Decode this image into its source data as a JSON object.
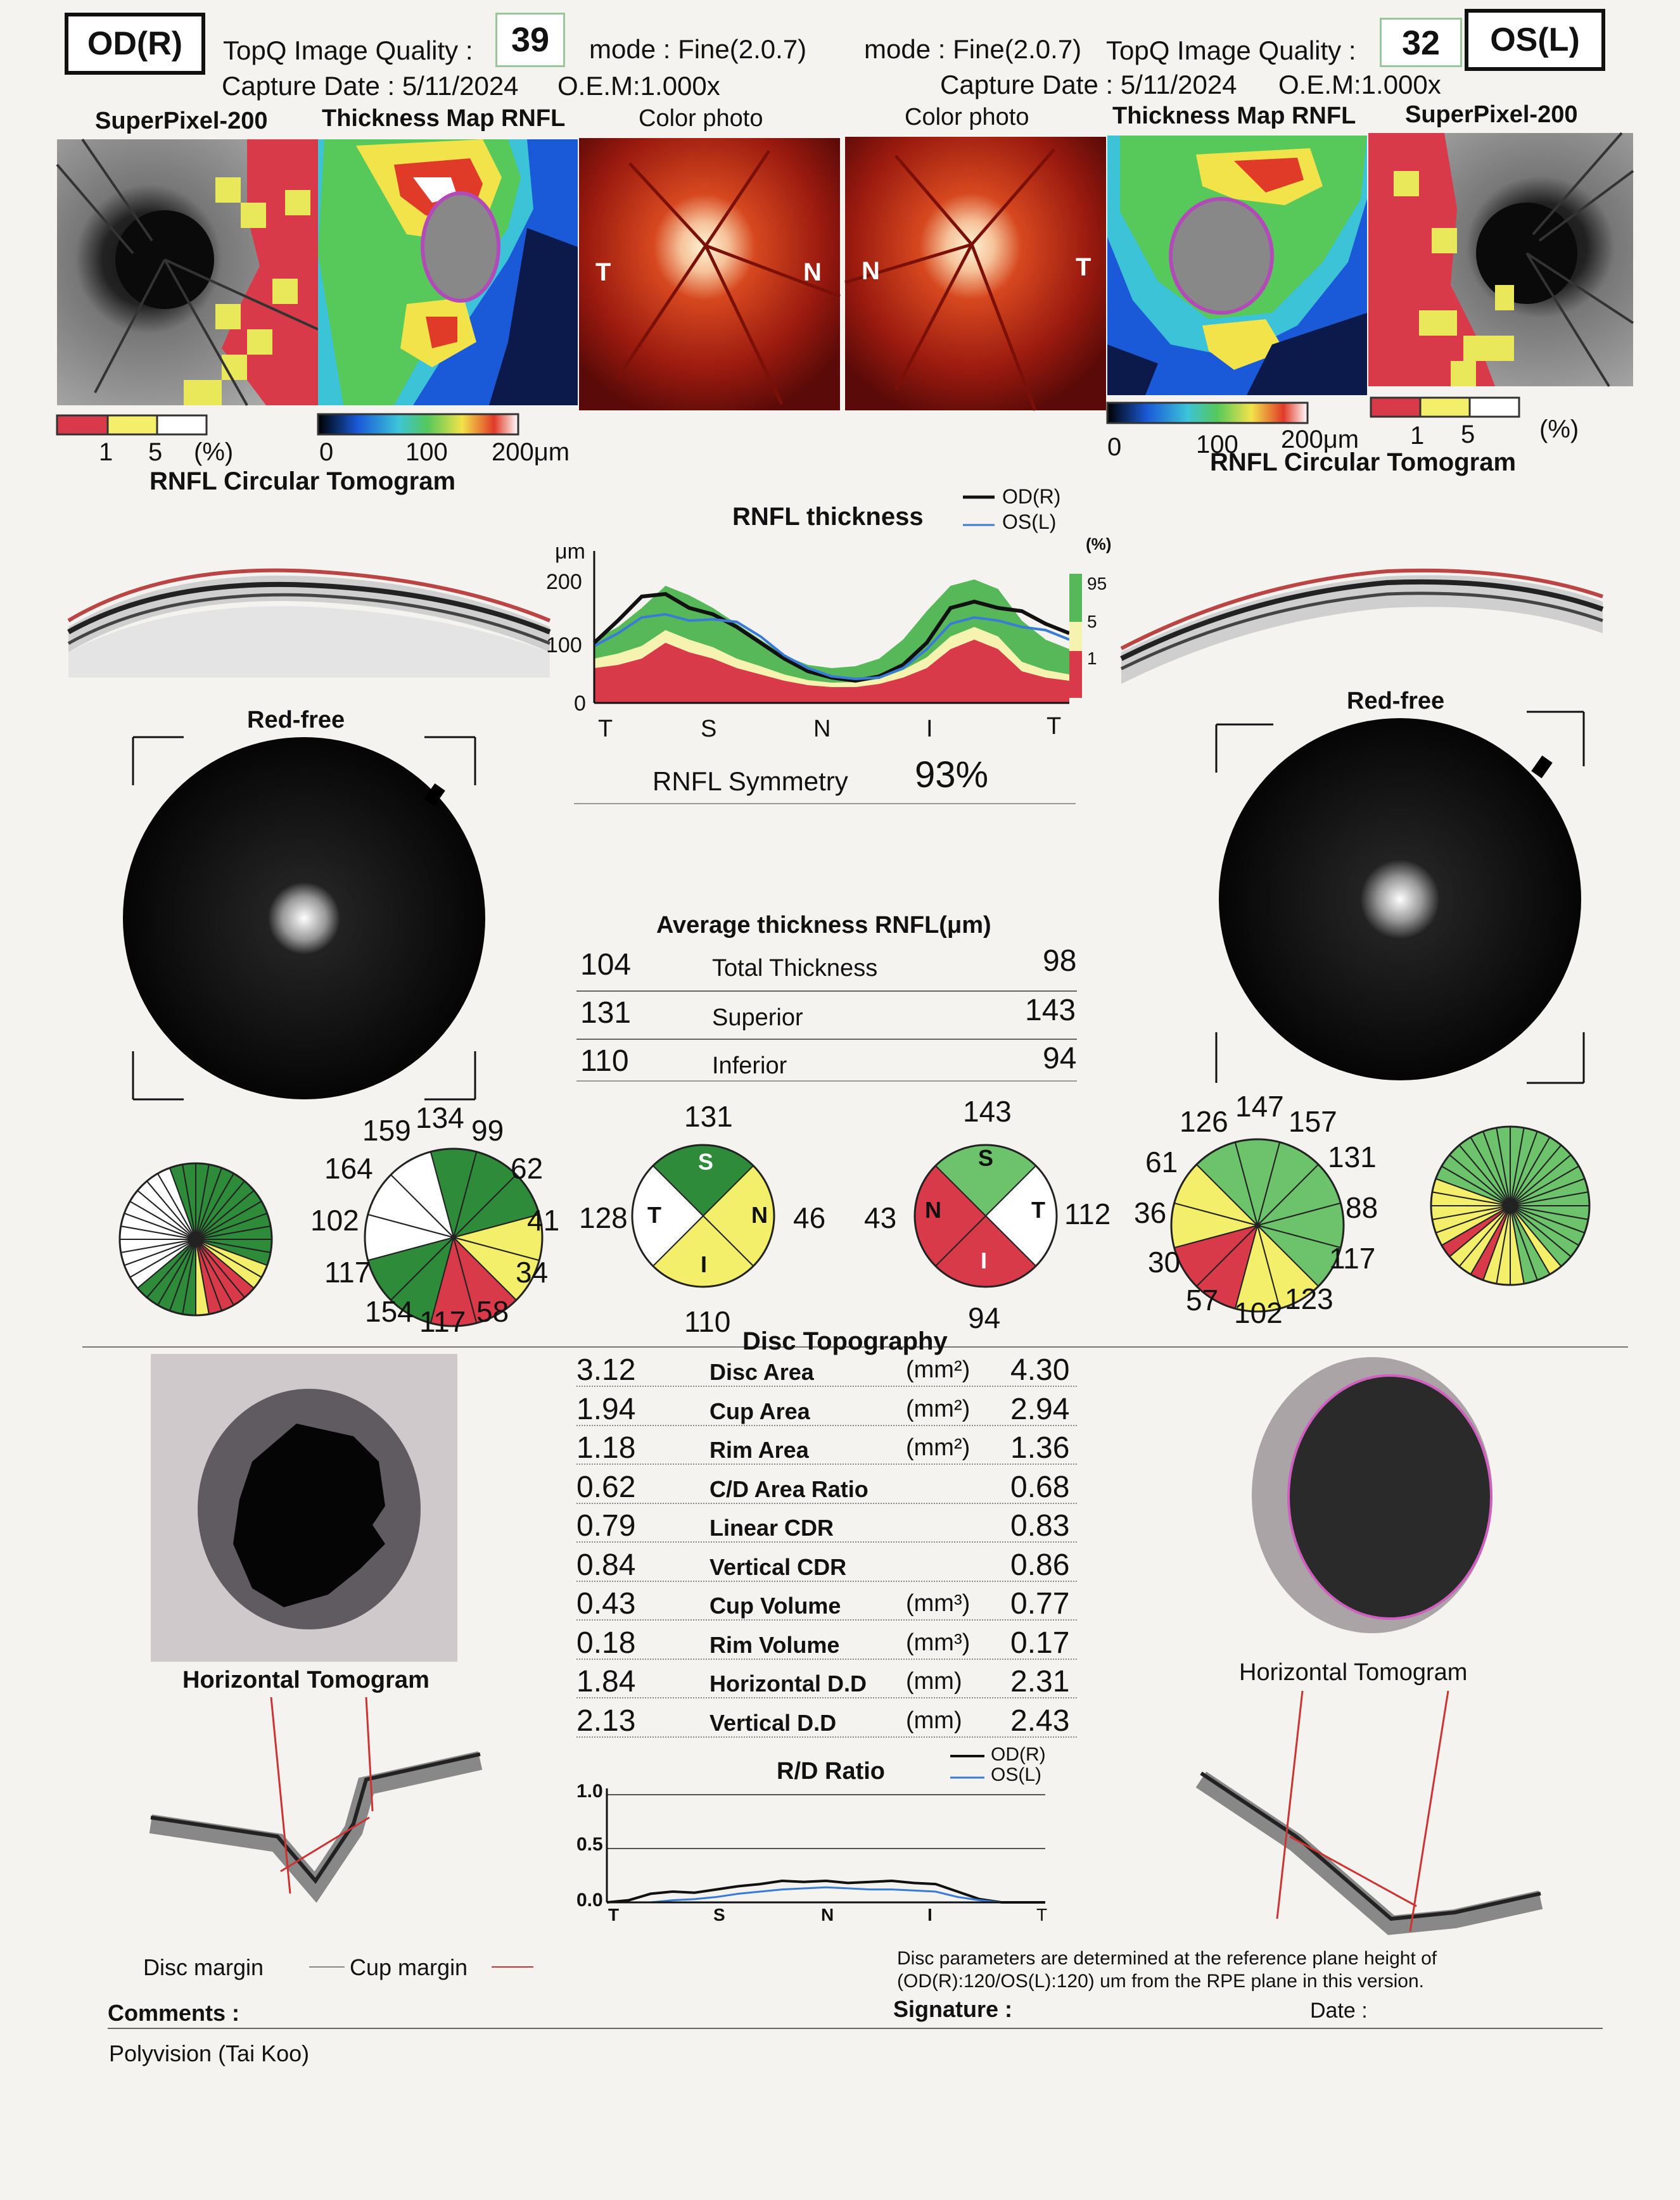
{
  "header": {
    "od_label": "OD(R)",
    "os_label": "OS(L)",
    "od_quality_label": "TopQ Image Quality :",
    "od_quality_value": "39",
    "od_mode": "mode : Fine(2.0.7)",
    "od_capture": "Capture Date : 5/11/2024",
    "od_oem": "O.E.M:1.000x",
    "os_mode": "mode : Fine(2.0.7)",
    "os_quality_label": "TopQ Image Quality :",
    "os_quality_value": "32",
    "os_capture": "Capture Date : 5/11/2024",
    "os_oem": "O.E.M:1.000x"
  },
  "panels": {
    "od": {
      "superpixel": "SuperPixel-200",
      "thickness_map": "Thickness Map RNFL",
      "color_photo": "Color photo"
    },
    "os": {
      "color_photo": "Color photo",
      "thickness_map": "Thickness Map RNFL",
      "superpixel": "SuperPixel-200"
    },
    "fundus_letters": {
      "t": "T",
      "n": "N"
    }
  },
  "legends": {
    "sp_1": "1",
    "sp_5": "5",
    "sp_pct": "(%)",
    "tm_0": "0",
    "tm_100": "100",
    "tm_200": "200μm",
    "tomogram_title": "RNFL Circular Tomogram"
  },
  "colors": {
    "red": "#d93a4a",
    "yellow": "#f4ef6a",
    "green": "#2e8b3a",
    "light_green": "#6cc36c",
    "white": "#ffffff",
    "od_line": "#111111",
    "os_line": "#3a7bd5"
  },
  "rnfl_chart": {
    "title": "RNFL thickness",
    "legend_od": "OD(R)",
    "legend_os": "OS(L)",
    "y_unit": "μm",
    "y_ticks": [
      "200",
      "100",
      "0"
    ],
    "x_ticks": [
      "T",
      "S",
      "N",
      "I",
      "T"
    ],
    "pct_label": "(%)",
    "pct_ticks": [
      "95",
      "5",
      "1"
    ],
    "symmetry_label": "RNFL Symmetry",
    "symmetry_value": "93%"
  },
  "chart_data": [
    {
      "type": "line",
      "title": "RNFL thickness",
      "ylabel": "μm",
      "ylim": [
        0,
        220
      ],
      "x_ticks": [
        "T",
        "S",
        "N",
        "I",
        "T"
      ],
      "x": [
        0,
        5,
        10,
        15,
        20,
        25,
        30,
        35,
        40,
        45,
        50,
        55,
        60,
        65,
        70,
        75,
        80,
        85,
        90,
        95,
        100
      ],
      "bands": {
        "p1": [
          55,
          60,
          70,
          95,
          80,
          70,
          55,
          45,
          35,
          28,
          25,
          25,
          30,
          40,
          55,
          85,
          100,
          85,
          50,
          40,
          35
        ],
        "p5": [
          70,
          78,
          90,
          115,
          100,
          88,
          70,
          58,
          45,
          36,
          32,
          33,
          38,
          52,
          72,
          105,
          120,
          105,
          65,
          52,
          45
        ],
        "p95": [
          100,
          120,
          150,
          185,
          170,
          150,
          125,
          100,
          75,
          60,
          55,
          58,
          70,
          100,
          145,
          185,
          195,
          180,
          130,
          100,
          85
        ]
      },
      "series": [
        {
          "name": "OD(R)",
          "values": [
            95,
            130,
            168,
            172,
            150,
            140,
            120,
            95,
            70,
            50,
            40,
            35,
            42,
            60,
            95,
            150,
            160,
            150,
            145,
            125,
            110
          ]
        },
        {
          "name": "OS(L)",
          "values": [
            90,
            110,
            135,
            140,
            130,
            132,
            128,
            105,
            75,
            55,
            42,
            38,
            40,
            55,
            85,
            125,
            135,
            130,
            120,
            115,
            100
          ]
        }
      ]
    },
    {
      "type": "line",
      "title": "R/D Ratio",
      "ylim": [
        0,
        1.0
      ],
      "y_ticks": [
        "1.0",
        "0.5",
        "0.0"
      ],
      "x_ticks": [
        "T",
        "S",
        "N",
        "I",
        "T"
      ],
      "x": [
        0,
        5,
        10,
        15,
        20,
        25,
        30,
        35,
        40,
        45,
        50,
        55,
        60,
        65,
        70,
        75,
        80,
        85,
        90,
        95,
        100
      ],
      "series": [
        {
          "name": "OD(R)",
          "values": [
            0.0,
            0.02,
            0.08,
            0.1,
            0.09,
            0.12,
            0.15,
            0.17,
            0.2,
            0.19,
            0.2,
            0.18,
            0.19,
            0.2,
            0.18,
            0.17,
            0.1,
            0.03,
            0.0,
            0.0,
            0.0
          ]
        },
        {
          "name": "OS(L)",
          "values": [
            0.0,
            0.0,
            0.0,
            0.02,
            0.03,
            0.05,
            0.08,
            0.1,
            0.12,
            0.13,
            0.14,
            0.13,
            0.12,
            0.12,
            0.11,
            0.1,
            0.05,
            0.02,
            0.0,
            0.0,
            0.0
          ]
        }
      ]
    }
  ],
  "redfree": {
    "od": "Red-free",
    "os": "Red-free"
  },
  "average": {
    "title": "Average thickness RNFL(μm)",
    "rows": [
      {
        "od": "104",
        "name": "Total Thickness",
        "os": "98"
      },
      {
        "od": "131",
        "name": "Superior",
        "os": "143"
      },
      {
        "od": "110",
        "name": "Inferior",
        "os": "94"
      }
    ]
  },
  "clock_od": {
    "top": "134",
    "n159": "159",
    "n99": "99",
    "n164": "164",
    "n62": "62",
    "n102": "102",
    "n41": "41",
    "n117": "117",
    "n34": "34",
    "n154": "154",
    "n117b": "117",
    "n58": "58"
  },
  "quad_od": {
    "top": "131",
    "left": "128",
    "right": "46",
    "bottom": "110",
    "s": "S",
    "t": "T",
    "n": "N",
    "i": "I"
  },
  "quad_os": {
    "top": "143",
    "left": "43",
    "right": "112",
    "bottom": "94",
    "s": "S",
    "t": "T",
    "n": "N",
    "i": "I"
  },
  "clock_os": {
    "top": "147",
    "n126": "126",
    "n157": "157",
    "n61": "61",
    "n131": "131",
    "n36": "36",
    "n88": "88",
    "n30": "30",
    "n117": "117",
    "n57": "57",
    "n102": "102",
    "n123": "123"
  },
  "disc": {
    "title": "Disc Topography",
    "rows": [
      {
        "od": "3.12",
        "name": "Disc Area",
        "unit": "(mm²)",
        "os": "4.30"
      },
      {
        "od": "1.94",
        "name": "Cup Area",
        "unit": "(mm²)",
        "os": "2.94"
      },
      {
        "od": "1.18",
        "name": "Rim Area",
        "unit": "(mm²)",
        "os": "1.36"
      },
      {
        "od": "0.62",
        "name": "C/D Area Ratio",
        "unit": "",
        "os": "0.68"
      },
      {
        "od": "0.79",
        "name": "Linear CDR",
        "unit": "",
        "os": "0.83"
      },
      {
        "od": "0.84",
        "name": "Vertical CDR",
        "unit": "",
        "os": "0.86"
      },
      {
        "od": "0.43",
        "name": "Cup Volume",
        "unit": "(mm³)",
        "os": "0.77"
      },
      {
        "od": "0.18",
        "name": "Rim Volume",
        "unit": "(mm³)",
        "os": "0.17"
      },
      {
        "od": "1.84",
        "name": "Horizontal D.D",
        "unit": "(mm)",
        "os": "2.31"
      },
      {
        "od": "2.13",
        "name": "Vertical D.D",
        "unit": "(mm)",
        "os": "2.43"
      }
    ]
  },
  "horizontal": {
    "od": "Horizontal Tomogram",
    "os": "Horizontal Tomogram"
  },
  "rd_chart": {
    "title": "R/D Ratio",
    "legend_od": "OD(R)",
    "legend_os": "OS(L)",
    "y_ticks": [
      "1.0",
      "0.5",
      "0.0"
    ],
    "x_ticks": [
      "T",
      "S",
      "N",
      "I",
      "T"
    ]
  },
  "footer": {
    "disc_margin": "Disc margin",
    "cup_margin": "Cup margin",
    "note1": "Disc parameters are determined at the reference plane height of",
    "note2": "(OD(R):120/OS(L):120) um from the RPE plane in this version.",
    "comments": "Comments :",
    "signature": "Signature :",
    "date": "Date :",
    "clinic": "Polyvision (Tai Koo)"
  }
}
